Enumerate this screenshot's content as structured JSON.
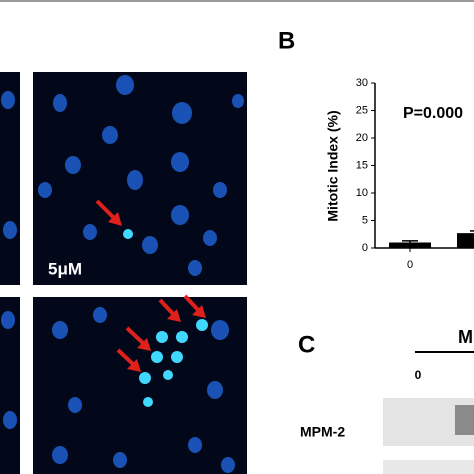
{
  "panels": {
    "b_label": "B",
    "c_label": "C",
    "micrograph_label": "5μM"
  },
  "chart_data": {
    "type": "bar",
    "ylabel": "Mitotic Index (%)",
    "annotation": "P=0.000",
    "categories": [
      "0",
      null
    ],
    "values": [
      1,
      2.7
    ],
    "errors": [
      0.3,
      0.4
    ],
    "color": "#000000",
    "ylim": [
      0,
      30
    ],
    "yticks": [
      0,
      5,
      10,
      15,
      20,
      25,
      30
    ]
  },
  "blot": {
    "header": "M",
    "lane_label": "0",
    "row_label": "MPM-2"
  }
}
